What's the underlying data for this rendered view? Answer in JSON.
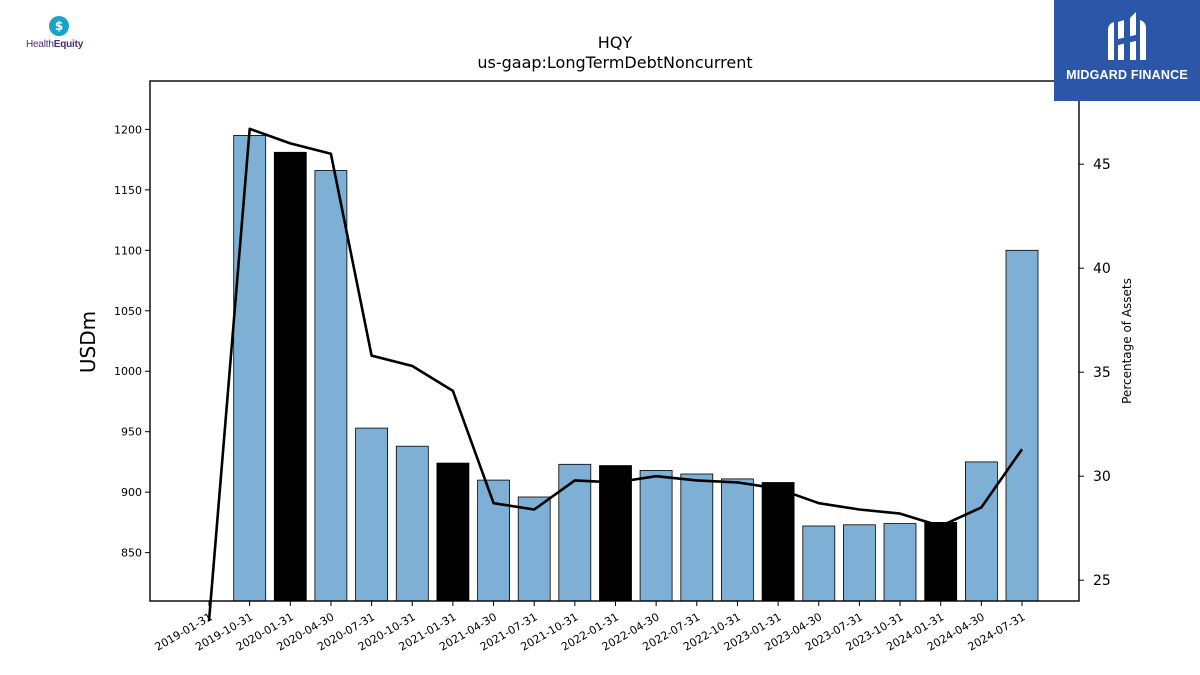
{
  "logos": {
    "left_text": "Health",
    "left_text_bold": "Equity",
    "right_text": "MIDGARD FINANCE"
  },
  "colors": {
    "bar_default": "#7eb0d5",
    "bar_highlight": "#000000",
    "line": "#000000",
    "left_logo": "#19a3c6",
    "right_logo_bg": "#2c57a8"
  },
  "chart_data": {
    "type": "bar",
    "title": "HQY",
    "subtitle": "us-gaap:LongTermDebtNoncurrent",
    "ylabel": "USDm",
    "y2label": "Percentage of Assets",
    "categories": [
      "2019-01-31",
      "2019-10-31",
      "2020-01-31",
      "2020-04-30",
      "2020-07-31",
      "2020-10-31",
      "2021-01-31",
      "2021-04-30",
      "2021-07-31",
      "2021-10-31",
      "2022-01-31",
      "2022-04-30",
      "2022-07-31",
      "2022-10-31",
      "2023-01-31",
      "2023-04-30",
      "2023-07-31",
      "2023-10-31",
      "2024-01-31",
      "2024-04-30",
      "2024-07-31"
    ],
    "series": [
      {
        "axis": "left",
        "kind": "bar",
        "values": [
          null,
          1195,
          1181,
          1166,
          953,
          938,
          924,
          910,
          896,
          923,
          922,
          918,
          915,
          911,
          908,
          872,
          873,
          874,
          875,
          925,
          1100
        ],
        "highlight": [
          false,
          false,
          true,
          false,
          false,
          false,
          true,
          false,
          false,
          false,
          true,
          false,
          false,
          false,
          true,
          false,
          false,
          false,
          true,
          false,
          false
        ]
      },
      {
        "axis": "right",
        "kind": "line",
        "values": [
          null,
          46.7,
          46.0,
          45.5,
          35.8,
          35.3,
          34.1,
          28.7,
          28.4,
          29.8,
          29.7,
          30.0,
          29.8,
          29.7,
          29.4,
          28.7,
          28.4,
          28.2,
          27.6,
          28.5,
          31.3
        ]
      }
    ],
    "ylim": [
      810,
      1240
    ],
    "y2lim": [
      24.0,
      49.0
    ],
    "yticks": [
      850,
      900,
      950,
      1000,
      1050,
      1100,
      1150,
      1200
    ],
    "y2ticks": [
      25,
      30,
      35,
      40,
      45
    ]
  }
}
